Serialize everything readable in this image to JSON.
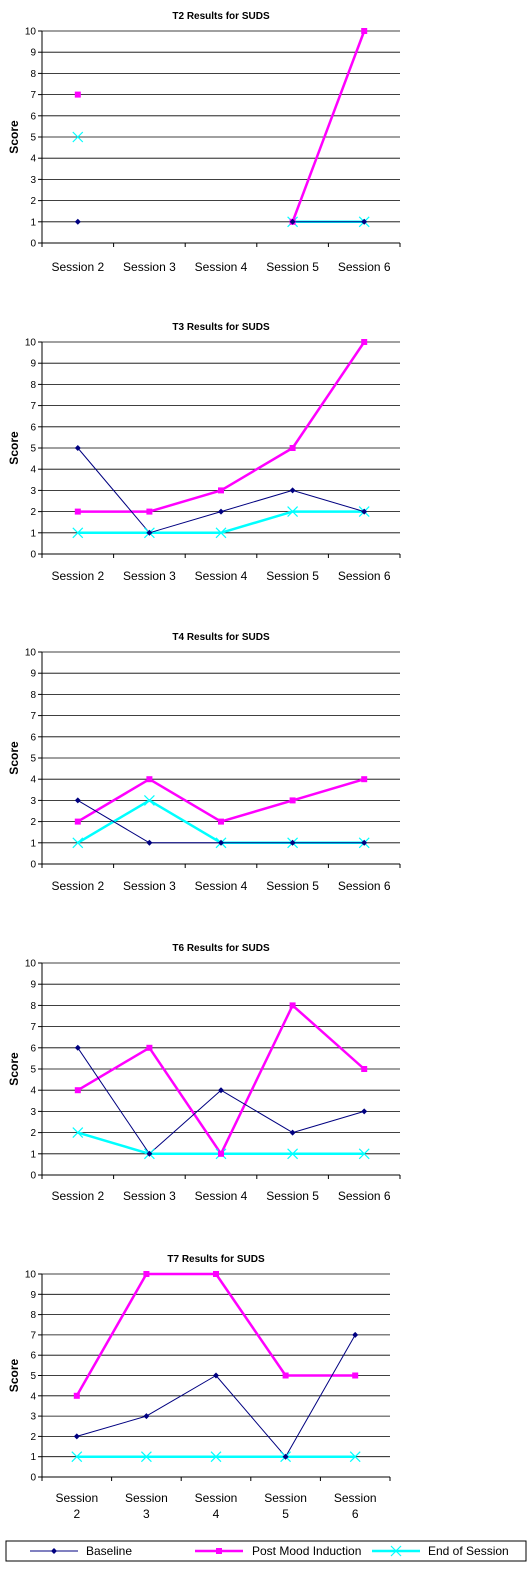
{
  "colors": {
    "baseline": "#000080",
    "post_mood": "#ff00ff",
    "end_session": "#00ffff",
    "grid": "#000000"
  },
  "legend": {
    "baseline": "Baseline",
    "post_mood": "Post Mood Induction",
    "end_session": "End of Session"
  },
  "chart_data": [
    {
      "type": "line",
      "title": "T2 Results for SUDS",
      "ylabel": "Score",
      "xlabel": "",
      "categories": [
        "Session 2",
        "Session 3",
        "Session 4",
        "Session 5",
        "Session 6"
      ],
      "ylim": [
        0,
        10
      ],
      "yticks": [
        "0",
        "1",
        "2",
        "3",
        "4",
        "5",
        "6",
        "7",
        "8",
        "9",
        "10"
      ],
      "grid": true,
      "series": [
        {
          "name": "Baseline",
          "values": [
            1,
            null,
            null,
            1,
            1
          ]
        },
        {
          "name": "Post Mood Induction",
          "values": [
            7,
            null,
            null,
            1,
            10
          ]
        },
        {
          "name": "End of Session",
          "values": [
            5,
            null,
            null,
            1,
            1
          ]
        }
      ]
    },
    {
      "type": "line",
      "title": "T3 Results for SUDS",
      "ylabel": "Score",
      "xlabel": "",
      "categories": [
        "Session 2",
        "Session 3",
        "Session 4",
        "Session 5",
        "Session 6"
      ],
      "ylim": [
        0,
        10
      ],
      "yticks": [
        "0",
        "1",
        "2",
        "3",
        "4",
        "5",
        "6",
        "7",
        "8",
        "9",
        "10"
      ],
      "grid": true,
      "series": [
        {
          "name": "Baseline",
          "values": [
            5,
            1,
            2,
            3,
            2
          ]
        },
        {
          "name": "Post Mood Induction",
          "values": [
            2,
            2,
            3,
            5,
            10
          ]
        },
        {
          "name": "End of Session",
          "values": [
            1,
            1,
            1,
            2,
            2
          ]
        }
      ]
    },
    {
      "type": "line",
      "title": "T4 Results for SUDS",
      "ylabel": "Score",
      "xlabel": "",
      "categories": [
        "Session 2",
        "Session 3",
        "Session 4",
        "Session 5",
        "Session 6"
      ],
      "ylim": [
        0,
        10
      ],
      "yticks": [
        "0",
        "1",
        "2",
        "3",
        "4",
        "5",
        "6",
        "7",
        "8",
        "9",
        "10"
      ],
      "grid": true,
      "series": [
        {
          "name": "Baseline",
          "values": [
            3,
            1,
            1,
            1,
            1
          ]
        },
        {
          "name": "Post Mood Induction",
          "values": [
            2,
            4,
            2,
            3,
            4
          ]
        },
        {
          "name": "End of Session",
          "values": [
            1,
            3,
            1,
            1,
            1
          ]
        }
      ]
    },
    {
      "type": "line",
      "title": "T6 Results for SUDS",
      "ylabel": "Score",
      "xlabel": "",
      "categories": [
        "Session 2",
        "Session 3",
        "Session 4",
        "Session 5",
        "Session 6"
      ],
      "ylim": [
        0,
        10
      ],
      "yticks": [
        "0",
        "1",
        "2",
        "3",
        "4",
        "5",
        "6",
        "7",
        "8",
        "9",
        "10"
      ],
      "grid": true,
      "series": [
        {
          "name": "Baseline",
          "values": [
            6,
            1,
            4,
            2,
            3
          ]
        },
        {
          "name": "Post Mood Induction",
          "values": [
            4,
            6,
            1,
            8,
            5
          ]
        },
        {
          "name": "End of Session",
          "values": [
            2,
            1,
            1,
            1,
            1
          ]
        }
      ]
    },
    {
      "type": "line",
      "title": "T7 Results for SUDS",
      "ylabel": "Score",
      "xlabel": "",
      "categories": [
        "Session 2",
        "Session 3",
        "Session 4",
        "Session 5",
        "Session 6"
      ],
      "ylim": [
        0,
        10
      ],
      "yticks": [
        "0",
        "1",
        "2",
        "3",
        "4",
        "5",
        "6",
        "7",
        "8",
        "9",
        "10"
      ],
      "grid": true,
      "series": [
        {
          "name": "Baseline",
          "values": [
            2,
            3,
            5,
            1,
            7
          ]
        },
        {
          "name": "Post Mood Induction",
          "values": [
            4,
            10,
            10,
            5,
            5
          ]
        },
        {
          "name": "End of Session",
          "values": [
            1,
            1,
            1,
            1,
            1
          ]
        }
      ]
    }
  ]
}
